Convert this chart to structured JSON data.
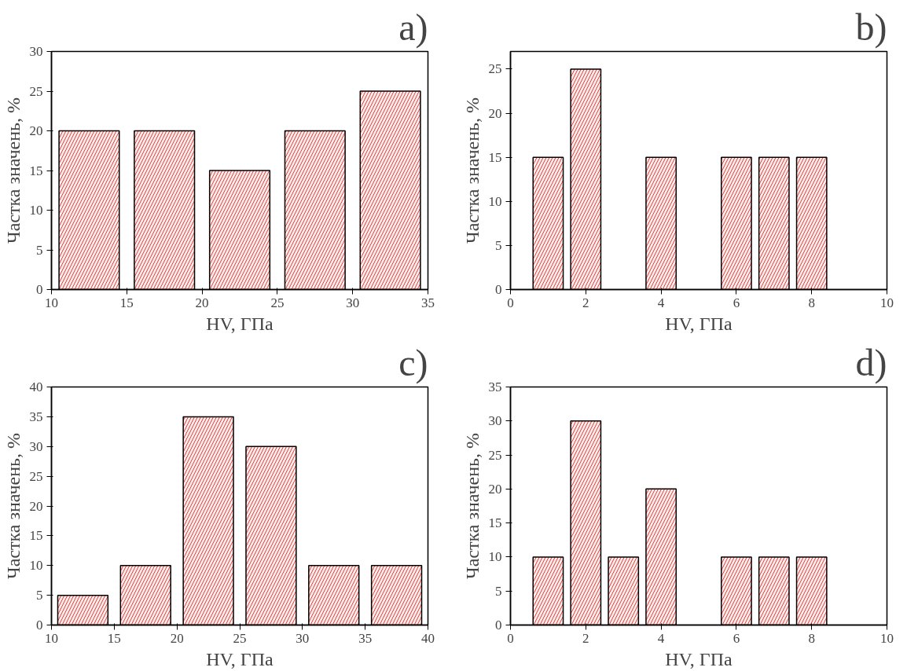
{
  "chart_data": [
    {
      "type": "bar",
      "annotations": [
        "a)"
      ],
      "xlabel": "HV, ГПа",
      "ylabel": "Частка значень, %",
      "color": "#e8403a",
      "x": [
        12.5,
        17.5,
        22.5,
        27.5,
        32.5
      ],
      "values": [
        20,
        20,
        15,
        20,
        25
      ],
      "xlim": [
        10,
        35
      ],
      "xticks": [
        10,
        15,
        20,
        25,
        30,
        35
      ],
      "ylim": [
        0,
        30
      ],
      "yticks": [
        0,
        5,
        10,
        15,
        20,
        25,
        30
      ]
    },
    {
      "type": "bar",
      "annotations": [
        "b)"
      ],
      "xlabel": "HV, ГПа",
      "ylabel": "Частка значень, %",
      "color": "#e8403a",
      "x": [
        1,
        2,
        4,
        6,
        7,
        8
      ],
      "values": [
        15,
        25,
        15,
        15,
        15,
        15
      ],
      "xlim": [
        0,
        10
      ],
      "xticks": [
        0,
        2,
        4,
        6,
        8,
        10
      ],
      "ylim": [
        0,
        27
      ],
      "yticks": [
        0,
        5,
        10,
        15,
        20,
        25
      ]
    },
    {
      "type": "bar",
      "annotations": [
        "c)"
      ],
      "xlabel": "HV, ГПа",
      "ylabel": "Частка значень, %",
      "color": "#e8403a",
      "x": [
        12.5,
        17.5,
        22.5,
        27.5,
        32.5,
        37.5
      ],
      "values": [
        5,
        10,
        35,
        30,
        10,
        10
      ],
      "xlim": [
        10,
        40
      ],
      "xticks": [
        10,
        15,
        20,
        25,
        30,
        35,
        40
      ],
      "ylim": [
        0,
        40
      ],
      "yticks": [
        0,
        5,
        10,
        15,
        20,
        25,
        30,
        35,
        40
      ]
    },
    {
      "type": "bar",
      "annotations": [
        "d)"
      ],
      "xlabel": "HV, ГПа",
      "ylabel": "Частка значень, %",
      "color": "#e8403a",
      "x": [
        1,
        2,
        3,
        4,
        6,
        7,
        8
      ],
      "values": [
        10,
        30,
        10,
        20,
        10,
        10,
        10
      ],
      "xlim": [
        0,
        10
      ],
      "xticks": [
        0,
        2,
        4,
        6,
        8,
        10
      ],
      "ylim": [
        0,
        35
      ],
      "yticks": [
        0,
        5,
        10,
        15,
        20,
        25,
        30,
        35
      ]
    }
  ]
}
